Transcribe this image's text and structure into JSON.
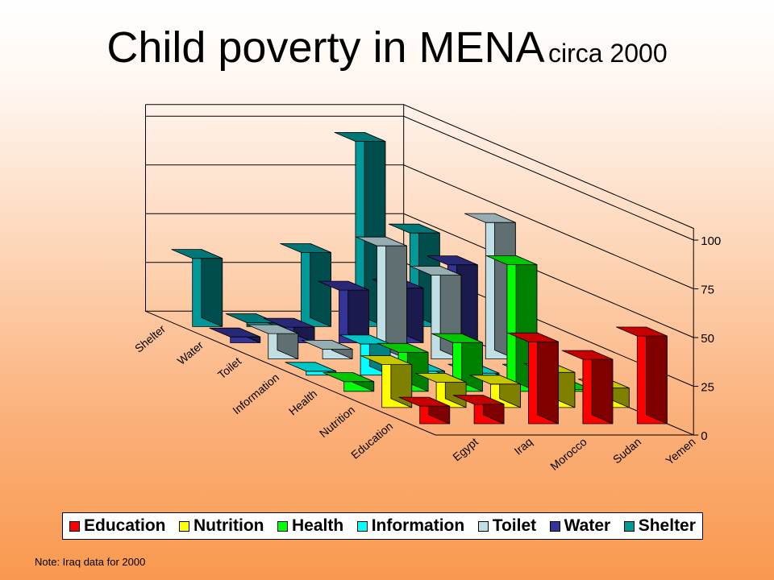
{
  "title": {
    "main": "Child poverty in MENA",
    "sub": "circa 2000"
  },
  "note": "Note: Iraq data for 2000",
  "colors": {
    "Education": "#ff0000",
    "Nutrition": "#ffff00",
    "Health": "#00ff00",
    "Information": "#00ffff",
    "Toilet": "#c0dfe4",
    "Water": "#333399",
    "Shelter": "#009999"
  },
  "chart_data": {
    "type": "bar",
    "subtype": "3d-bar",
    "categories": [
      "Egypt",
      "Iraq",
      "Morocco",
      "Sudan",
      "Yemen"
    ],
    "series": [
      {
        "name": "Education",
        "values": [
          9,
          10,
          42,
          33,
          45
        ]
      },
      {
        "name": "Nutrition",
        "values": [
          22,
          13,
          12,
          18,
          10
        ]
      },
      {
        "name": "Health",
        "values": [
          5,
          20,
          25,
          65,
          1
        ]
      },
      {
        "name": "Information",
        "values": [
          2,
          16,
          2,
          1,
          1
        ]
      },
      {
        "name": "Toilet",
        "values": [
          13,
          5,
          58,
          43,
          70
        ]
      },
      {
        "name": "Water",
        "values": [
          3,
          8,
          27,
          28,
          40
        ]
      },
      {
        "name": "Shelter",
        "values": [
          35,
          2,
          38,
          95,
          48
        ]
      }
    ],
    "yticks": [
      0,
      25,
      50,
      75,
      100
    ],
    "ylim": [
      0,
      100
    ],
    "grid": true,
    "legend_position": "bottom"
  }
}
